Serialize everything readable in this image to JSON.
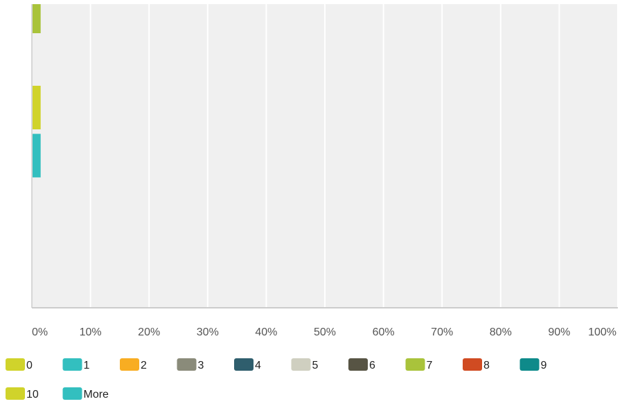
{
  "chart_data": {
    "type": "bar",
    "orientation": "horizontal",
    "stacked": true,
    "categories": [
      "0",
      "1",
      "2",
      "3",
      "4",
      "5",
      "6",
      "7",
      "8",
      "9",
      "10",
      "More"
    ],
    "series": [
      {
        "name": "0",
        "color": "#d0d32b"
      },
      {
        "name": "1",
        "color": "#33bfbf"
      },
      {
        "name": "2",
        "color": "#f8ad22"
      },
      {
        "name": "3",
        "color": "#8a8b7a"
      },
      {
        "name": "4",
        "color": "#2f5e6d"
      },
      {
        "name": "5",
        "color": "#cfcfc0"
      },
      {
        "name": "6",
        "color": "#575444"
      },
      {
        "name": "7",
        "color": "#a9c33b"
      },
      {
        "name": "8",
        "color": "#d04b22"
      },
      {
        "name": "9",
        "color": "#0e8a8a"
      },
      {
        "name": "10",
        "color": "#d0d32b"
      },
      {
        "name": "More",
        "color": "#33bfbf"
      }
    ],
    "rows": [
      {
        "series": "7",
        "value": 1.5
      },
      {
        "series": "",
        "value": 0
      },
      {
        "series": "10",
        "value": 1.5
      },
      {
        "series": "More",
        "value": 1.5
      },
      {
        "series": "",
        "value": 0
      }
    ],
    "x_ticks": [
      "0%",
      "10%",
      "20%",
      "30%",
      "40%",
      "50%",
      "60%",
      "70%",
      "80%",
      "90%",
      "100%"
    ],
    "xlim": [
      0,
      100
    ],
    "grid": true,
    "legend_position": "bottom"
  }
}
